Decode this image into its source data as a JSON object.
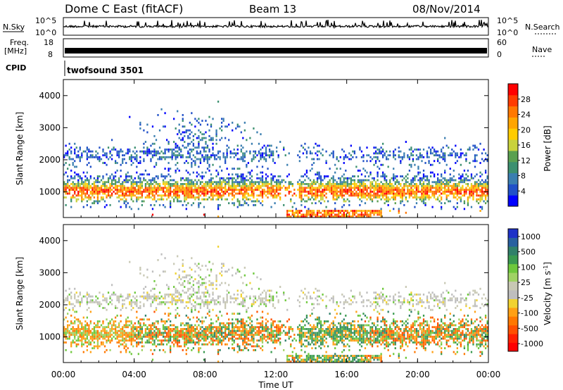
{
  "header": {
    "station": "Dome C East (fitACF)",
    "beam": "Beam 13",
    "date": "08/Nov/2014"
  },
  "side_labels": {
    "nsky": "N.Sky",
    "nsearch": "N.Search",
    "freq_line1": "Freq.",
    "freq_line2": "[MHz]",
    "nave": "Nave",
    "cpid": "CPID",
    "cpid_value": "twofsound 3501"
  },
  "strip_ticks": {
    "nsky_left": [
      "10^5",
      "10^0"
    ],
    "nsky_right": [
      "10^5",
      "10^0"
    ],
    "freq_left": [
      "18",
      "8"
    ],
    "freq_right": [
      "60",
      "0"
    ]
  },
  "chart_data": [
    {
      "type": "heatmap",
      "name_hint": "power",
      "ylabel": "Slant Range [km]",
      "xlabel": "Time UT",
      "x_ticks": [
        "00:00",
        "04:00",
        "08:00",
        "12:00",
        "16:00",
        "20:00",
        "00:00"
      ],
      "xlim_hours": [
        0,
        24
      ],
      "y_ticks": [
        1000,
        2000,
        3000,
        4000
      ],
      "ylim": [
        200,
        4500
      ],
      "colorbar": {
        "label": "Power [dB]",
        "ticks": [
          4,
          8,
          12,
          16,
          20,
          24,
          28
        ],
        "range": [
          0,
          32
        ],
        "colors": [
          "#0000ff",
          "#2050c8",
          "#3a7eb0",
          "#3c9070",
          "#5aa050",
          "#c8d23c",
          "#ffcc00",
          "#ffa500",
          "#ff7800",
          "#ff3c00",
          "#ff0000"
        ]
      }
    },
    {
      "type": "heatmap",
      "name_hint": "velocity",
      "ylabel": "Slant Range [km]",
      "xlabel": "Time UT",
      "x_ticks": [
        "00:00",
        "04:00",
        "08:00",
        "12:00",
        "16:00",
        "20:00",
        "00:00"
      ],
      "xlim_hours": [
        0,
        24
      ],
      "y_ticks": [
        1000,
        2000,
        3000,
        4000
      ],
      "ylim": [
        200,
        4500
      ],
      "colorbar": {
        "label": "Velocity [m s^-1]",
        "ticks": [
          "1000",
          "500",
          "100",
          "25",
          "-25",
          "-100",
          "-500",
          "-1000"
        ],
        "colors": [
          "#1e32c8",
          "#2860a0",
          "#30806a",
          "#3a9a50",
          "#6ec83c",
          "#a0d264",
          "#c8c8b4",
          "#bebebe",
          "#f0d230",
          "#ffa014",
          "#ff7800",
          "#ff5000",
          "#ff2000",
          "#ff0000"
        ]
      }
    }
  ]
}
